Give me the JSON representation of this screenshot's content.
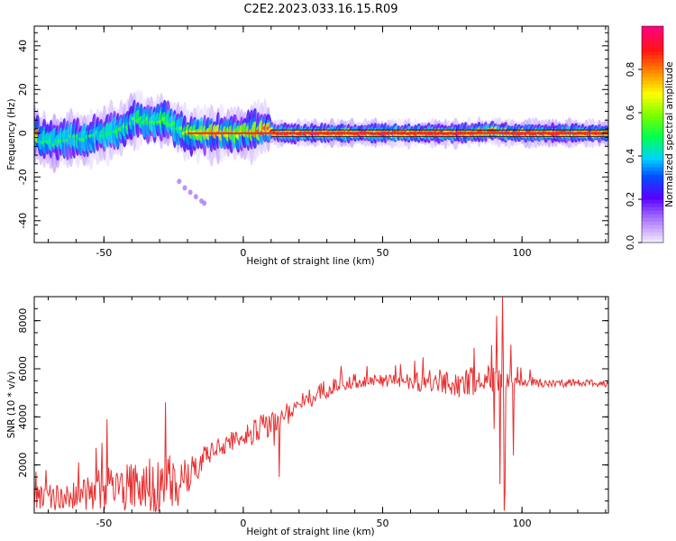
{
  "title": "C2E2.2023.033.16.15.R09",
  "chart_data": [
    {
      "type": "heatmap",
      "xlabel": "Height of straight line (km)",
      "ylabel": "Frequency (Hz)",
      "xlim": [
        -75,
        131
      ],
      "ylim": [
        -50,
        49
      ],
      "xticks": [
        -50,
        0,
        50,
        100
      ],
      "yticks": [
        -40,
        -20,
        0,
        20,
        40
      ],
      "colorbar": {
        "label": "Normalized spectral amplitude",
        "range": [
          0.0,
          1.0
        ],
        "ticks": [
          "0.0",
          "0.2",
          "0.4",
          "0.6",
          "0.8"
        ]
      },
      "ridge": [
        {
          "x": -73,
          "y": -3,
          "amp": 0.45
        },
        {
          "x": -68,
          "y": -4,
          "amp": 0.5
        },
        {
          "x": -63,
          "y": -2,
          "amp": 0.45
        },
        {
          "x": -58,
          "y": -3,
          "amp": 0.5
        },
        {
          "x": -53,
          "y": -1,
          "amp": 0.45
        },
        {
          "x": -48,
          "y": 0,
          "amp": 0.5
        },
        {
          "x": -43,
          "y": 2,
          "amp": 0.5
        },
        {
          "x": -38,
          "y": 7,
          "amp": 0.55
        },
        {
          "x": -33,
          "y": 5,
          "amp": 0.5
        },
        {
          "x": -28,
          "y": 6,
          "amp": 0.55
        },
        {
          "x": -24,
          "y": 3,
          "amp": 0.5
        },
        {
          "x": -20,
          "y": 0,
          "amp": 0.65
        },
        {
          "x": -15,
          "y": 0,
          "amp": 0.7
        },
        {
          "x": -10,
          "y": 0,
          "amp": 0.8
        },
        {
          "x": -5,
          "y": 0,
          "amp": 0.7
        },
        {
          "x": 0,
          "y": 0,
          "amp": 0.7
        },
        {
          "x": 5,
          "y": 1,
          "amp": 0.8
        },
        {
          "x": 8,
          "y": 2,
          "amp": 0.85
        },
        {
          "x": 12,
          "y": 0,
          "amp": 0.9
        },
        {
          "x": 20,
          "y": 0,
          "amp": 0.9
        },
        {
          "x": 35,
          "y": 0,
          "amp": 0.9
        },
        {
          "x": 50,
          "y": 0,
          "amp": 0.9
        },
        {
          "x": 65,
          "y": 0,
          "amp": 0.9
        },
        {
          "x": 80,
          "y": 0,
          "amp": 0.9
        },
        {
          "x": 90,
          "y": 1,
          "amp": 0.85
        },
        {
          "x": 95,
          "y": 0,
          "amp": 0.9
        },
        {
          "x": 110,
          "y": 0,
          "amp": 0.9
        },
        {
          "x": 125,
          "y": 0,
          "amp": 0.85
        }
      ],
      "scatter_tail": [
        {
          "x": -23,
          "y": -22
        },
        {
          "x": -21,
          "y": -25
        },
        {
          "x": -19,
          "y": -27
        },
        {
          "x": -17,
          "y": -29
        },
        {
          "x": -15,
          "y": -31
        },
        {
          "x": -14,
          "y": -32
        }
      ]
    },
    {
      "type": "line",
      "xlabel": "Height of straight line (km)",
      "ylabel": "SNR (10 * v/v)",
      "xlim": [
        -75,
        131
      ],
      "ylim": [
        0,
        9000
      ],
      "xticks": [
        -50,
        0,
        50,
        100
      ],
      "yticks": [
        2000,
        4000,
        6000,
        8000
      ],
      "color": "#e83030",
      "envelope": [
        {
          "x": -75,
          "mean": 600,
          "amp": 500
        },
        {
          "x": -60,
          "mean": 700,
          "amp": 600
        },
        {
          "x": -50,
          "mean": 1000,
          "amp": 900
        },
        {
          "x": -40,
          "mean": 1100,
          "amp": 1000
        },
        {
          "x": -30,
          "mean": 1200,
          "amp": 1300
        },
        {
          "x": -20,
          "mean": 1300,
          "amp": 900
        },
        {
          "x": -15,
          "mean": 2200,
          "amp": 500
        },
        {
          "x": -10,
          "mean": 2700,
          "amp": 400
        },
        {
          "x": 0,
          "mean": 3200,
          "amp": 500
        },
        {
          "x": 10,
          "mean": 3700,
          "amp": 600
        },
        {
          "x": 20,
          "mean": 4500,
          "amp": 450
        },
        {
          "x": 30,
          "mean": 5200,
          "amp": 400
        },
        {
          "x": 40,
          "mean": 5500,
          "amp": 300
        },
        {
          "x": 50,
          "mean": 5500,
          "amp": 250
        },
        {
          "x": 60,
          "mean": 5500,
          "amp": 350
        },
        {
          "x": 70,
          "mean": 5400,
          "amp": 600
        },
        {
          "x": 80,
          "mean": 5400,
          "amp": 600
        },
        {
          "x": 88,
          "mean": 5600,
          "amp": 700
        },
        {
          "x": 95,
          "mean": 5500,
          "amp": 300
        },
        {
          "x": 110,
          "mean": 5400,
          "amp": 180
        },
        {
          "x": 131,
          "mean": 5400,
          "amp": 150
        }
      ],
      "spikes": [
        {
          "x": 9,
          "value": 3200
        },
        {
          "x": 11,
          "value": 2800
        },
        {
          "x": 13,
          "value": 1500
        },
        {
          "x": -28,
          "value": 4600
        },
        {
          "x": -49,
          "value": 3900
        },
        {
          "x": 91,
          "value": 8200
        },
        {
          "x": 92,
          "value": 1200
        },
        {
          "x": 93,
          "value": 9000
        },
        {
          "x": 93.5,
          "value": 100
        },
        {
          "x": 94,
          "value": 900
        },
        {
          "x": 96,
          "value": 7000
        },
        {
          "x": 97,
          "value": 2400
        },
        {
          "x": 90,
          "value": 3500
        }
      ]
    }
  ]
}
